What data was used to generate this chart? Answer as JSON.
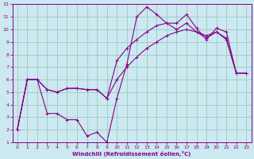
{
  "bg_color": "#cce8f0",
  "grid_color": "#99ccbb",
  "line_color": "#880088",
  "xlabel": "Windchill (Refroidissement éolien,°C)",
  "xlim": [
    -0.5,
    23.5
  ],
  "ylim": [
    1,
    12
  ],
  "xticks": [
    0,
    1,
    2,
    3,
    4,
    5,
    6,
    7,
    8,
    9,
    10,
    11,
    12,
    13,
    14,
    15,
    16,
    17,
    18,
    19,
    20,
    21,
    22,
    23
  ],
  "yticks": [
    1,
    2,
    3,
    4,
    5,
    6,
    7,
    8,
    9,
    10,
    11,
    12
  ],
  "line1_x": [
    0,
    1,
    2,
    3,
    4,
    5,
    6,
    7,
    8,
    9,
    10,
    11,
    12,
    13,
    14,
    15,
    16,
    17,
    18,
    19,
    20,
    21,
    22,
    23
  ],
  "line1_y": [
    2.0,
    6.0,
    6.0,
    3.3,
    3.3,
    2.8,
    2.8,
    1.5,
    1.8,
    1.0,
    4.5,
    7.2,
    11.0,
    11.8,
    11.2,
    10.5,
    10.5,
    11.2,
    10.1,
    9.2,
    10.1,
    9.8,
    6.5,
    6.5
  ],
  "line2_x": [
    0,
    1,
    2,
    3,
    4,
    5,
    6,
    7,
    8,
    9,
    10,
    11,
    12,
    13,
    14,
    15,
    16,
    17,
    18,
    19,
    20,
    21,
    22,
    23
  ],
  "line2_y": [
    2.0,
    6.0,
    6.0,
    5.2,
    5.0,
    5.3,
    5.3,
    5.2,
    5.2,
    4.5,
    7.5,
    8.5,
    9.2,
    9.8,
    10.3,
    10.5,
    10.0,
    10.5,
    9.8,
    9.3,
    9.8,
    9.2,
    6.5,
    6.5
  ],
  "line3_x": [
    0,
    1,
    2,
    3,
    4,
    5,
    6,
    7,
    8,
    9,
    10,
    11,
    12,
    13,
    14,
    15,
    16,
    17,
    18,
    19,
    20,
    21,
    22,
    23
  ],
  "line3_y": [
    2.0,
    6.0,
    6.0,
    5.2,
    5.0,
    5.3,
    5.3,
    5.2,
    5.2,
    4.5,
    6.0,
    7.0,
    7.8,
    8.5,
    9.0,
    9.5,
    9.8,
    10.0,
    9.8,
    9.5,
    9.8,
    9.3,
    6.5,
    6.5
  ]
}
